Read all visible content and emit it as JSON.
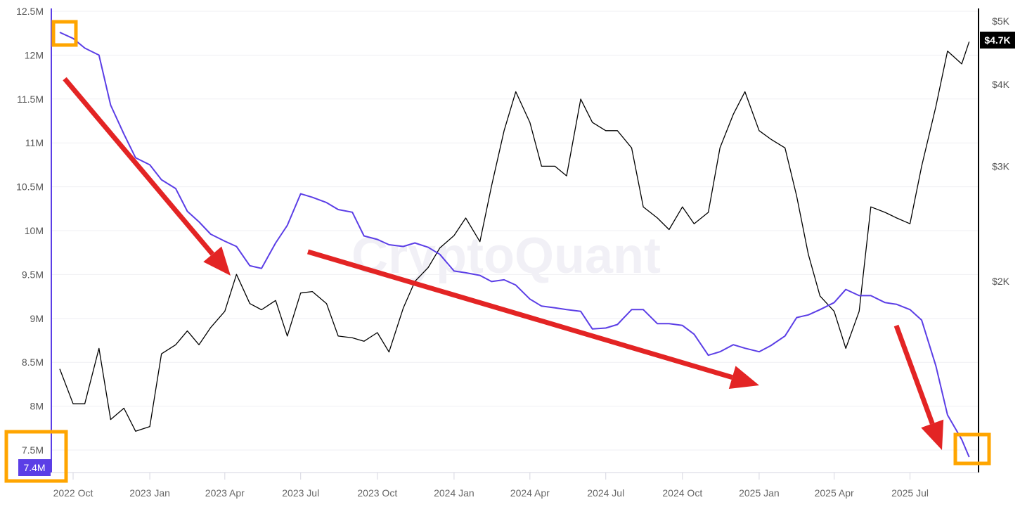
{
  "chart_data": {
    "type": "line",
    "watermark": "CryptoQuant",
    "x_ticks": [
      "2022 Oct",
      "2023 Jan",
      "2023 Apr",
      "2023 Jul",
      "2023 Oct",
      "2024 Jan",
      "2024 Apr",
      "2024 Jul",
      "2024 Oct",
      "2025 Jan",
      "2025 Apr",
      "2025 Jul"
    ],
    "left_axis": {
      "ticks": [
        "12.5M",
        "12M",
        "11.5M",
        "11M",
        "10.5M",
        "10M",
        "9.5M",
        "9M",
        "8.5M",
        "8M",
        "7.5M"
      ],
      "range": [
        7.5,
        12.5
      ],
      "unit": "M",
      "color": "#5b3ee6"
    },
    "right_axis": {
      "ticks": [
        "$5K",
        "$4K",
        "$3K",
        "$2K"
      ],
      "scale": "log",
      "range": [
        1000,
        5000
      ],
      "color": "#000000"
    },
    "current_labels": {
      "left": "7.4M",
      "right": "$4.7K"
    },
    "grid": true,
    "dates": [
      "2022-09-15",
      "2022-10-01",
      "2022-10-15",
      "2022-11-01",
      "2022-11-15",
      "2022-12-01",
      "2022-12-15",
      "2023-01-01",
      "2023-01-15",
      "2023-02-01",
      "2023-02-15",
      "2023-03-01",
      "2023-03-15",
      "2023-04-01",
      "2023-04-15",
      "2023-05-01",
      "2023-05-15",
      "2023-06-01",
      "2023-06-15",
      "2023-07-01",
      "2023-07-15",
      "2023-08-01",
      "2023-08-15",
      "2023-09-01",
      "2023-09-15",
      "2023-10-01",
      "2023-10-15",
      "2023-11-01",
      "2023-11-15",
      "2023-12-01",
      "2023-12-15",
      "2024-01-01",
      "2024-01-15",
      "2024-02-01",
      "2024-02-15",
      "2024-03-01",
      "2024-03-15",
      "2024-04-01",
      "2024-04-15",
      "2024-05-01",
      "2024-05-15",
      "2024-06-01",
      "2024-06-15",
      "2024-07-01",
      "2024-07-15",
      "2024-08-01",
      "2024-08-15",
      "2024-09-01",
      "2024-09-15",
      "2024-10-01",
      "2024-10-15",
      "2024-11-01",
      "2024-11-15",
      "2024-12-01",
      "2024-12-15",
      "2025-01-01",
      "2025-01-15",
      "2025-02-01",
      "2025-02-15",
      "2025-03-01",
      "2025-03-15",
      "2025-04-01",
      "2025-04-15",
      "2025-05-01",
      "2025-05-15",
      "2025-06-01",
      "2025-06-15",
      "2025-07-01",
      "2025-07-15",
      "2025-08-01",
      "2025-08-15",
      "2025-09-01",
      "2025-09-10"
    ],
    "series": [
      {
        "axis": "left",
        "color": "#5b3ee6",
        "values": [
          12.26,
          12.19,
          12.08,
          12.0,
          11.43,
          11.1,
          10.83,
          10.75,
          10.58,
          10.48,
          10.22,
          10.1,
          9.96,
          9.88,
          9.82,
          9.6,
          9.57,
          9.86,
          10.06,
          10.42,
          10.38,
          10.32,
          10.24,
          10.21,
          9.94,
          9.9,
          9.84,
          9.82,
          9.86,
          9.81,
          9.73,
          9.54,
          9.52,
          9.49,
          9.42,
          9.44,
          9.38,
          9.22,
          9.14,
          9.12,
          9.1,
          9.08,
          8.88,
          8.89,
          8.93,
          9.1,
          9.1,
          8.94,
          8.94,
          8.92,
          8.82,
          8.58,
          8.62,
          8.7,
          8.66,
          8.62,
          8.69,
          8.8,
          9.01,
          9.04,
          9.1,
          9.18,
          9.33,
          9.26,
          9.26,
          9.18,
          9.16,
          9.1,
          8.98,
          8.46,
          7.9,
          7.62,
          7.42
        ]
      },
      {
        "axis": "right",
        "color": "#000000",
        "values": [
          1470,
          1300,
          1300,
          1580,
          1230,
          1280,
          1180,
          1200,
          1550,
          1600,
          1680,
          1600,
          1700,
          1800,
          2050,
          1850,
          1810,
          1870,
          1650,
          1920,
          1930,
          1850,
          1650,
          1640,
          1620,
          1670,
          1560,
          1820,
          2000,
          2100,
          2250,
          2350,
          2500,
          2300,
          2800,
          3400,
          3900,
          3500,
          3000,
          3000,
          2900,
          3800,
          3500,
          3400,
          3400,
          3200,
          2600,
          2500,
          2400,
          2600,
          2450,
          2550,
          3200,
          3600,
          3900,
          3400,
          3300,
          3200,
          2700,
          2200,
          1900,
          1800,
          1580,
          1800,
          2600,
          2550,
          2500,
          2450,
          3000,
          3700,
          4500,
          4300,
          4650
        ]
      }
    ],
    "annotations": {
      "arrow_color": "#e32424",
      "box_color": "#ffa500"
    }
  }
}
